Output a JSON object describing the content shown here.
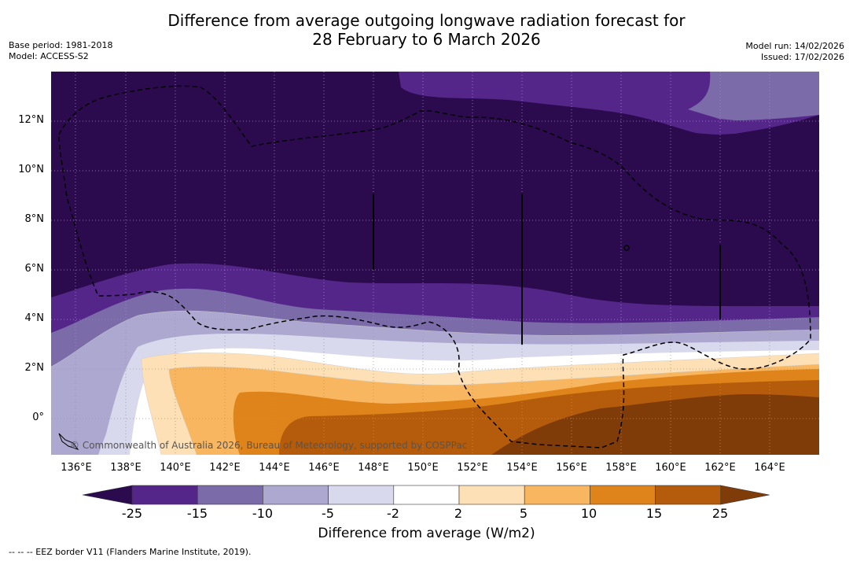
{
  "title": {
    "line1": "Difference from average outgoing longwave radiation forecast for",
    "line2": "28 February to 6 March 2026"
  },
  "meta": {
    "base_period": "Base period: 1981-2018",
    "model": "Model: ACCESS-S2",
    "model_run": "Model run: 14/02/2026",
    "issued": "Issued: 17/02/2026"
  },
  "map": {
    "latitude_labels": [
      "12°N",
      "10°N",
      "8°N",
      "6°N",
      "4°N",
      "2°N",
      "0°"
    ],
    "longitude_labels": [
      "136°E",
      "138°E",
      "140°E",
      "142°E",
      "144°E",
      "146°E",
      "148°E",
      "150°E",
      "152°E",
      "154°E",
      "156°E",
      "158°E",
      "160°E",
      "162°E",
      "164°E"
    ],
    "copyright": "© Commonwealth of Australia 2026, Bureau of Meteorology, supported by COSPPac"
  },
  "colorbar": {
    "title": "Difference from average (W/m2)",
    "ticks": [
      "-25",
      "-15",
      "-10",
      "-5",
      "-2",
      "2",
      "5",
      "10",
      "15",
      "25"
    ],
    "colors": [
      "#2b0a4d",
      "#55268a",
      "#7b6ba8",
      "#ada8cf",
      "#d8d9ec",
      "#ffffff",
      "#fee0b6",
      "#f9b660",
      "#df831b",
      "#b45c0b",
      "#7f3b08"
    ]
  },
  "footnote": "--  --  -- EEZ border V11 (Flanders Marine Institute, 2019)."
}
